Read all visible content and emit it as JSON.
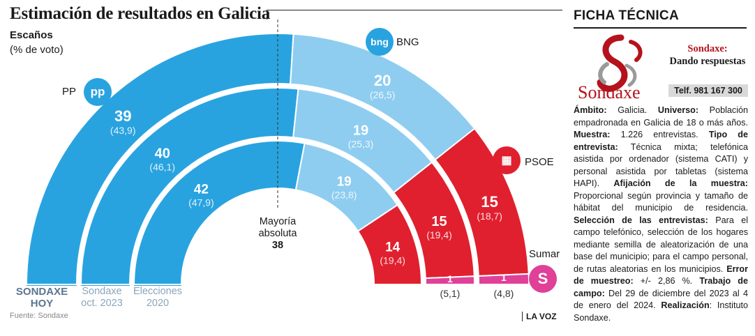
{
  "header": {
    "title": "Estimación de resultados en Galicia",
    "subtitle_bold": "Escaños",
    "subtitle": "(% de voto)"
  },
  "colors": {
    "pp": "#29a3e0",
    "bng": "#8ecdf0",
    "psoe": "#e0202e",
    "sumar": "#e04098"
  },
  "chart_data": {
    "type": "stacked-semicircle",
    "majority_label": [
      "Mayoría",
      "absoluta"
    ],
    "majority_value": "38",
    "series": [
      {
        "name": "PP",
        "icon": "pp-logo-icon"
      },
      {
        "name": "BNG",
        "icon": "bng-logo-icon"
      },
      {
        "name": "PSOE",
        "icon": "psoe-logo-icon"
      },
      {
        "name": "Sumar",
        "icon": "sumar-logo-icon"
      }
    ],
    "rings": [
      {
        "label": [
          "SONDAXE",
          "HOY"
        ],
        "seats": {
          "PP": 39,
          "BNG": 20,
          "PSOE": 15,
          "Sumar": 1
        },
        "vote": {
          "PP": "(43,9)",
          "BNG": "(26,5)",
          "PSOE": "(18,7)",
          "Sumar": "(4,8)"
        }
      },
      {
        "label": [
          "Sondaxe",
          "oct. 2023"
        ],
        "seats": {
          "PP": 40,
          "BNG": 19,
          "PSOE": 15,
          "Sumar": 1
        },
        "vote": {
          "PP": "(46,1)",
          "BNG": "(25,3)",
          "PSOE": "(19,4)",
          "Sumar": "(5,1)"
        }
      },
      {
        "label": [
          "Elecciones",
          "2020"
        ],
        "seats": {
          "PP": 42,
          "BNG": 19,
          "PSOE": 14,
          "Sumar": 0
        },
        "vote": {
          "PP": "(47,9)",
          "BNG": "(23,8)",
          "PSOE": "(19,4)",
          "Sumar": ""
        }
      }
    ]
  },
  "footer": {
    "source": "Fuente: Sondaxe",
    "brand": "LA VOZ"
  },
  "sidebar": {
    "title": "FICHA TÉCNICA",
    "company": "Sondaxe",
    "slogan_name": "Sondaxe:",
    "slogan": "Dando respuestas",
    "phone": "Telf. 981 167 300",
    "paragraphs": [
      {
        "k": "Ámbito:",
        "v": " Galicia. "
      },
      {
        "k": "Universo:",
        "v": " Población empadronada en Galicia de 18 o más años. "
      },
      {
        "k": "Muestra:",
        "v": " 1.226 entrevistas. "
      },
      {
        "k": "Tipo de entrevista:",
        "v": " Técnica mixta; telefónica asistida por ordenador (sistema CATI) y personal asistida por tabletas (sistema HAPI). "
      },
      {
        "k": "Afijación de la muestra:",
        "v": " Proporcional según provincia y tamaño de hábitat del municipio de residencia. "
      },
      {
        "k": "Selección de las entrevistas:",
        "v": " Para el campo telefónico, selección de los hogares mediante semilla de aleatorización de una base del municipio; para el campo personal, de rutas aleatorias en los municipios. "
      },
      {
        "k": "Error de muestreo:",
        "v": " +/- 2,86 %. "
      },
      {
        "k": "Trabajo de campo:",
        "v": " Del 29 de diciembre del 2023 al 4 de enero del 2024. "
      },
      {
        "k": "Realización",
        "v": ": Instituto Sondaxe."
      }
    ]
  }
}
